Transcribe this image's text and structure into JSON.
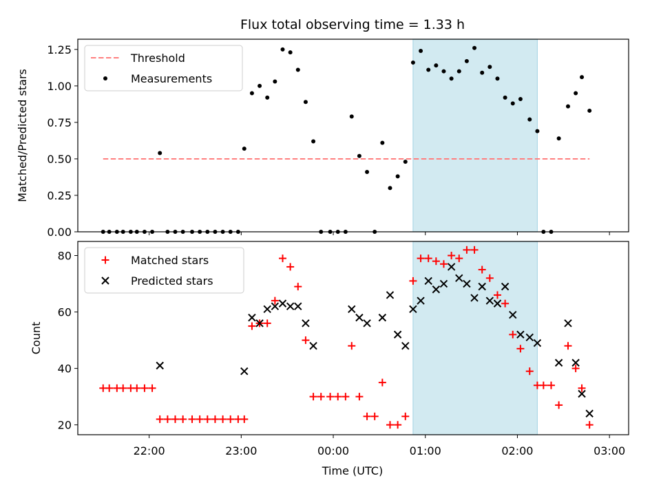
{
  "chart_data": [
    {
      "type": "scatter",
      "title": "Flux total observing time = 1.33 h",
      "xlabel": "",
      "ylabel": "Matched/Predicted stars",
      "ylim": [
        0,
        1.32
      ],
      "yticks": [
        "0.00",
        "0.25",
        "0.50",
        "0.75",
        "1.00",
        "1.25"
      ],
      "legend_position": "top-left",
      "threshold": {
        "name": "Threshold",
        "value": 0.5,
        "x_start": "21:30",
        "x_end": "02:47",
        "color": "#ff7f7f"
      },
      "shaded_interval": {
        "start": "00:52",
        "end": "02:13",
        "color": "#add8e6"
      },
      "series": [
        {
          "name": "Measurements",
          "color": "#000000",
          "points": [
            [
              "21:30",
              0
            ],
            [
              "21:34",
              0
            ],
            [
              "21:39",
              0
            ],
            [
              "21:43",
              0
            ],
            [
              "21:48",
              0
            ],
            [
              "21:52",
              0
            ],
            [
              "21:57",
              0
            ],
            [
              "22:02",
              0
            ],
            [
              "22:07",
              0.54
            ],
            [
              "22:12",
              0
            ],
            [
              "22:17",
              0
            ],
            [
              "22:22",
              0
            ],
            [
              "22:28",
              0
            ],
            [
              "22:33",
              0
            ],
            [
              "22:38",
              0
            ],
            [
              "22:43",
              0
            ],
            [
              "22:48",
              0
            ],
            [
              "22:53",
              0
            ],
            [
              "22:58",
              0
            ],
            [
              "23:02",
              0.57
            ],
            [
              "23:07",
              0.95
            ],
            [
              "23:12",
              1.0
            ],
            [
              "23:17",
              0.92
            ],
            [
              "23:22",
              1.03
            ],
            [
              "23:27",
              1.25
            ],
            [
              "23:32",
              1.23
            ],
            [
              "23:37",
              1.11
            ],
            [
              "23:42",
              0.89
            ],
            [
              "23:47",
              0.62
            ],
            [
              "23:52",
              0
            ],
            [
              "23:58",
              0
            ],
            [
              "00:03",
              0
            ],
            [
              "00:08",
              0
            ],
            [
              "00:12",
              0.79
            ],
            [
              "00:17",
              0.52
            ],
            [
              "00:22",
              0.41
            ],
            [
              "00:27",
              0
            ],
            [
              "00:32",
              0.61
            ],
            [
              "00:37",
              0.3
            ],
            [
              "00:42",
              0.38
            ],
            [
              "00:47",
              0.48
            ],
            [
              "00:52",
              1.16
            ],
            [
              "00:57",
              1.24
            ],
            [
              "01:02",
              1.11
            ],
            [
              "01:07",
              1.14
            ],
            [
              "01:12",
              1.1
            ],
            [
              "01:17",
              1.05
            ],
            [
              "01:22",
              1.1
            ],
            [
              "01:27",
              1.17
            ],
            [
              "01:32",
              1.26
            ],
            [
              "01:37",
              1.09
            ],
            [
              "01:42",
              1.13
            ],
            [
              "01:47",
              1.05
            ],
            [
              "01:52",
              0.92
            ],
            [
              "01:57",
              0.88
            ],
            [
              "02:02",
              0.91
            ],
            [
              "02:08",
              0.77
            ],
            [
              "02:13",
              0.69
            ],
            [
              "02:17",
              0
            ],
            [
              "02:22",
              0
            ],
            [
              "02:27",
              0.64
            ],
            [
              "02:33",
              0.86
            ],
            [
              "02:38",
              0.95
            ],
            [
              "02:42",
              1.06
            ],
            [
              "02:47",
              0.83
            ]
          ]
        }
      ]
    },
    {
      "type": "scatter",
      "title": "",
      "xlabel": "Time (UTC)",
      "ylabel": "Count",
      "ylim": [
        16.5,
        85
      ],
      "yticks": [
        "20",
        "40",
        "60",
        "80"
      ],
      "xticks": [
        "22:00",
        "23:00",
        "00:00",
        "01:00",
        "02:00",
        "03:00"
      ],
      "legend_position": "top-left",
      "shaded_interval": {
        "start": "00:52",
        "end": "02:13",
        "color": "#add8e6"
      },
      "series": [
        {
          "name": "Matched stars",
          "color": "#ff0000",
          "points": [
            [
              "21:30",
              33
            ],
            [
              "21:34",
              33
            ],
            [
              "21:39",
              33
            ],
            [
              "21:43",
              33
            ],
            [
              "21:48",
              33
            ],
            [
              "21:52",
              33
            ],
            [
              "21:57",
              33
            ],
            [
              "22:02",
              33
            ],
            [
              "22:07",
              22
            ],
            [
              "22:12",
              22
            ],
            [
              "22:17",
              22
            ],
            [
              "22:22",
              22
            ],
            [
              "22:28",
              22
            ],
            [
              "22:33",
              22
            ],
            [
              "22:38",
              22
            ],
            [
              "22:43",
              22
            ],
            [
              "22:48",
              22
            ],
            [
              "22:53",
              22
            ],
            [
              "22:58",
              22
            ],
            [
              "23:02",
              22
            ],
            [
              "23:07",
              55
            ],
            [
              "23:12",
              56
            ],
            [
              "23:17",
              56
            ],
            [
              "23:22",
              64
            ],
            [
              "23:27",
              79
            ],
            [
              "23:32",
              76
            ],
            [
              "23:37",
              69
            ],
            [
              "23:42",
              50
            ],
            [
              "23:47",
              30
            ],
            [
              "23:52",
              30
            ],
            [
              "23:58",
              30
            ],
            [
              "00:03",
              30
            ],
            [
              "00:08",
              30
            ],
            [
              "00:12",
              48
            ],
            [
              "00:17",
              30
            ],
            [
              "00:22",
              23
            ],
            [
              "00:27",
              23
            ],
            [
              "00:32",
              35
            ],
            [
              "00:37",
              20
            ],
            [
              "00:42",
              20
            ],
            [
              "00:47",
              23
            ],
            [
              "00:52",
              71
            ],
            [
              "00:57",
              79
            ],
            [
              "01:02",
              79
            ],
            [
              "01:07",
              78
            ],
            [
              "01:12",
              77
            ],
            [
              "01:17",
              80
            ],
            [
              "01:22",
              79
            ],
            [
              "01:27",
              82
            ],
            [
              "01:32",
              82
            ],
            [
              "01:37",
              75
            ],
            [
              "01:42",
              72
            ],
            [
              "01:47",
              66
            ],
            [
              "01:52",
              63
            ],
            [
              "01:57",
              52
            ],
            [
              "02:02",
              47
            ],
            [
              "02:08",
              39
            ],
            [
              "02:13",
              34
            ],
            [
              "02:17",
              34
            ],
            [
              "02:22",
              34
            ],
            [
              "02:27",
              27
            ],
            [
              "02:33",
              48
            ],
            [
              "02:38",
              40
            ],
            [
              "02:42",
              33
            ],
            [
              "02:47",
              20
            ]
          ]
        },
        {
          "name": "Predicted stars",
          "color": "#000000",
          "points": [
            [
              "22:07",
              41
            ],
            [
              "23:02",
              39
            ],
            [
              "23:07",
              58
            ],
            [
              "23:12",
              56
            ],
            [
              "23:17",
              61
            ],
            [
              "23:22",
              62
            ],
            [
              "23:27",
              63
            ],
            [
              "23:32",
              62
            ],
            [
              "23:37",
              62
            ],
            [
              "23:42",
              56
            ],
            [
              "23:47",
              48
            ],
            [
              "00:12",
              61
            ],
            [
              "00:17",
              58
            ],
            [
              "00:22",
              56
            ],
            [
              "00:32",
              58
            ],
            [
              "00:37",
              66
            ],
            [
              "00:42",
              52
            ],
            [
              "00:47",
              48
            ],
            [
              "00:52",
              61
            ],
            [
              "00:57",
              64
            ],
            [
              "01:02",
              71
            ],
            [
              "01:07",
              68
            ],
            [
              "01:12",
              70
            ],
            [
              "01:17",
              76
            ],
            [
              "01:22",
              72
            ],
            [
              "01:27",
              70
            ],
            [
              "01:32",
              65
            ],
            [
              "01:37",
              69
            ],
            [
              "01:42",
              64
            ],
            [
              "01:47",
              63
            ],
            [
              "01:52",
              69
            ],
            [
              "01:57",
              59
            ],
            [
              "02:02",
              52
            ],
            [
              "02:08",
              51
            ],
            [
              "02:13",
              49
            ],
            [
              "02:27",
              42
            ],
            [
              "02:33",
              56
            ],
            [
              "02:38",
              42
            ],
            [
              "02:42",
              31
            ],
            [
              "02:47",
              24
            ]
          ]
        }
      ]
    }
  ]
}
